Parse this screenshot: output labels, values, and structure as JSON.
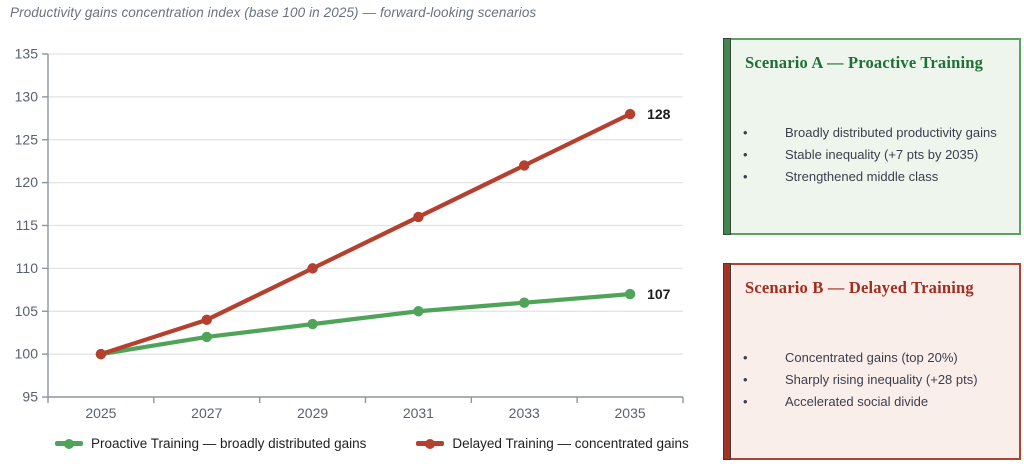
{
  "chart_data": {
    "type": "line",
    "title": "Productivity gains concentration index (base 100 in 2025) — forward-looking scenarios",
    "categories": [
      "2025",
      "2027",
      "2029",
      "2031",
      "2033",
      "2035"
    ],
    "series": [
      {
        "name": "Proactive Training — broadly distributed gains",
        "values": [
          100,
          102,
          103.5,
          105,
          106,
          107
        ],
        "color": "#4fa45a",
        "end_label": "107"
      },
      {
        "name": "Delayed Training — concentrated gains",
        "values": [
          100,
          104,
          110,
          116,
          122,
          128
        ],
        "color": "#b5402f",
        "end_label": "128"
      }
    ],
    "ylim": [
      95,
      135
    ],
    "ytick_step": 5,
    "yticks": [
      95,
      100,
      105,
      110,
      115,
      120,
      125,
      130,
      135
    ],
    "grid": true,
    "legend_position": "bottom"
  },
  "colors": {
    "green_line": "#4fa45a",
    "red_line": "#b5402f",
    "green_box_bg": "#edf5ec",
    "green_box_border": "#5ba163",
    "green_accent": "#41874d",
    "green_title": "#1f6f37",
    "red_box_bg": "#faeeeb",
    "red_box_border": "#ad4434",
    "red_accent": "#a03527",
    "red_title": "#a32c1e",
    "grid": "#e3e3e3",
    "axis": "#8f959e",
    "tick_label": "#5a6070",
    "title_text": "#6a7280",
    "data_label": "#1c1c1c"
  },
  "scenario_boxes": [
    {
      "title": "Scenario A — Proactive Training",
      "theme": "green",
      "bullets": [
        "Broadly distributed productivity gains",
        "Stable inequality (+7 pts by 2035)",
        "Strengthened middle class"
      ]
    },
    {
      "title": "Scenario B — Delayed Training",
      "theme": "red",
      "bullets": [
        "Concentrated gains (top 20%)",
        "Sharply rising inequality (+28 pts)",
        "Accelerated social divide"
      ]
    }
  ]
}
